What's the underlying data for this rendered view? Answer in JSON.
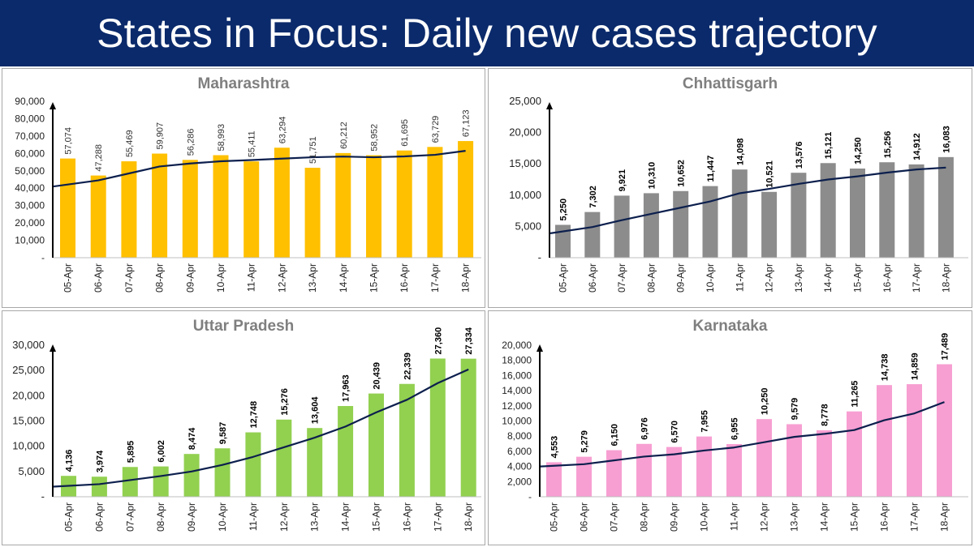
{
  "header": {
    "title": "States in Focus: Daily new cases trajectory"
  },
  "colors": {
    "banner": "#0b2a6b",
    "trend_line": "#0c1f4d",
    "maharashtra": "#ffc000",
    "chhattisgarh": "#8c8c8c",
    "uttar_pradesh": "#92d050",
    "karnataka": "#f79fd2"
  },
  "chart_data": [
    {
      "type": "bar",
      "title": "Maharashtra",
      "categories": [
        "05-Apr",
        "06-Apr",
        "07-Apr",
        "08-Apr",
        "09-Apr",
        "10-Apr",
        "11-Apr",
        "12-Apr",
        "13-Apr",
        "14-Apr",
        "15-Apr",
        "16-Apr",
        "17-Apr",
        "18-Apr"
      ],
      "values": [
        57074,
        47288,
        55469,
        59907,
        56286,
        58993,
        55411,
        63294,
        51751,
        60212,
        58952,
        61695,
        63729,
        67123
      ],
      "value_labels": [
        "57,074",
        "47,288",
        "55,469",
        "59,907",
        "56,286",
        "58,993",
        "55,411",
        "63,294",
        "51,751",
        "60,212",
        "58,952",
        "61,695",
        "63,729",
        "67,123"
      ],
      "trend": [
        41000,
        44500,
        48500,
        52500,
        54200,
        55500,
        56200,
        57000,
        57800,
        58200,
        57800,
        58300,
        59200,
        61500
      ],
      "ylim": [
        0,
        90000
      ],
      "yticks": [
        0,
        10000,
        20000,
        30000,
        40000,
        50000,
        60000,
        70000,
        80000,
        90000
      ],
      "ytick_labels": [
        "-",
        "10,000",
        "20,000",
        "30,000",
        "40,000",
        "50,000",
        "60,000",
        "70,000",
        "80,000",
        "90,000"
      ],
      "bar_color": "#ffc000",
      "label_style": "plain",
      "xlabel": "",
      "ylabel": ""
    },
    {
      "type": "bar",
      "title": "Chhattisgarh",
      "categories": [
        "05-Apr",
        "06-Apr",
        "07-Apr",
        "08-Apr",
        "09-Apr",
        "10-Apr",
        "11-Apr",
        "12-Apr",
        "13-Apr",
        "14-Apr",
        "15-Apr",
        "16-Apr",
        "17-Apr",
        "18-Apr"
      ],
      "values": [
        5250,
        7302,
        9921,
        10310,
        10652,
        11447,
        14098,
        10521,
        13576,
        15121,
        14250,
        15256,
        14912,
        16083
      ],
      "value_labels": [
        "5,250",
        "7,302",
        "9,921",
        "10,310",
        "10,652",
        "11,447",
        "14,098",
        "10,521",
        "13,576",
        "15,121",
        "14,250",
        "15,256",
        "14,912",
        "16,083"
      ],
      "trend": [
        3900,
        4900,
        6000,
        7000,
        8000,
        9000,
        10300,
        11000,
        11800,
        12500,
        13000,
        13600,
        14100,
        14400
      ],
      "ylim": [
        0,
        25000
      ],
      "yticks": [
        0,
        5000,
        10000,
        15000,
        20000,
        25000
      ],
      "ytick_labels": [
        "-",
        "5,000",
        "10,000",
        "15,000",
        "20,000",
        "25,000"
      ],
      "bar_color": "#8c8c8c",
      "label_style": "bold",
      "xlabel": "",
      "ylabel": ""
    },
    {
      "type": "bar",
      "title": "Uttar Pradesh",
      "categories": [
        "05-Apr",
        "06-Apr",
        "07-Apr",
        "08-Apr",
        "09-Apr",
        "10-Apr",
        "11-Apr",
        "12-Apr",
        "13-Apr",
        "14-Apr",
        "15-Apr",
        "16-Apr",
        "17-Apr",
        "18-Apr"
      ],
      "values": [
        4136,
        3974,
        5895,
        6002,
        8474,
        9587,
        12748,
        15276,
        13604,
        17963,
        20439,
        22339,
        27360,
        27334
      ],
      "value_labels": [
        "4,136",
        "3,974",
        "5,895",
        "6,002",
        "8,474",
        "9,587",
        "12,748",
        "15,276",
        "13,604",
        "17,963",
        "20,439",
        "22,339",
        "27,360",
        "27,334"
      ],
      "trend": [
        2000,
        2500,
        3300,
        4100,
        5000,
        6300,
        7900,
        9800,
        11700,
        13900,
        16700,
        19200,
        22500,
        25200
      ],
      "ylim": [
        0,
        30000
      ],
      "yticks": [
        0,
        5000,
        10000,
        15000,
        20000,
        25000,
        30000
      ],
      "ytick_labels": [
        "-",
        "5,000",
        "10,000",
        "15,000",
        "20,000",
        "25,000",
        "30,000"
      ],
      "bar_color": "#92d050",
      "label_style": "bold",
      "xlabel": "",
      "ylabel": ""
    },
    {
      "type": "bar",
      "title": "Karnataka",
      "categories": [
        "05-Apr",
        "06-Apr",
        "07-Apr",
        "08-Apr",
        "09-Apr",
        "10-Apr",
        "11-Apr",
        "12-Apr",
        "13-Apr",
        "14-Apr",
        "15-Apr",
        "16-Apr",
        "17-Apr",
        "18-Apr"
      ],
      "values": [
        4553,
        5279,
        6150,
        6976,
        6570,
        7955,
        6955,
        10250,
        9579,
        8778,
        11265,
        14738,
        14859,
        17489
      ],
      "value_labels": [
        "4,553",
        "5,279",
        "6,150",
        "6,976",
        "6,570",
        "7,955",
        "6,955",
        "10,250",
        "9,579",
        "8,778",
        "11,265",
        "14,738",
        "14,859",
        "17,489"
      ],
      "trend": [
        4000,
        4300,
        4800,
        5300,
        5600,
        6100,
        6500,
        7200,
        7900,
        8300,
        8800,
        10100,
        11000,
        12500
      ],
      "ylim": [
        0,
        20000
      ],
      "yticks": [
        0,
        2000,
        4000,
        6000,
        8000,
        10000,
        12000,
        14000,
        16000,
        18000,
        20000
      ],
      "ytick_labels": [
        "-",
        "2,000",
        "4,000",
        "6,000",
        "8,000",
        "10,000",
        "12,000",
        "14,000",
        "16,000",
        "18,000",
        "20,000"
      ],
      "bar_color": "#f79fd2",
      "label_style": "bold",
      "xlabel": "",
      "ylabel": ""
    }
  ]
}
